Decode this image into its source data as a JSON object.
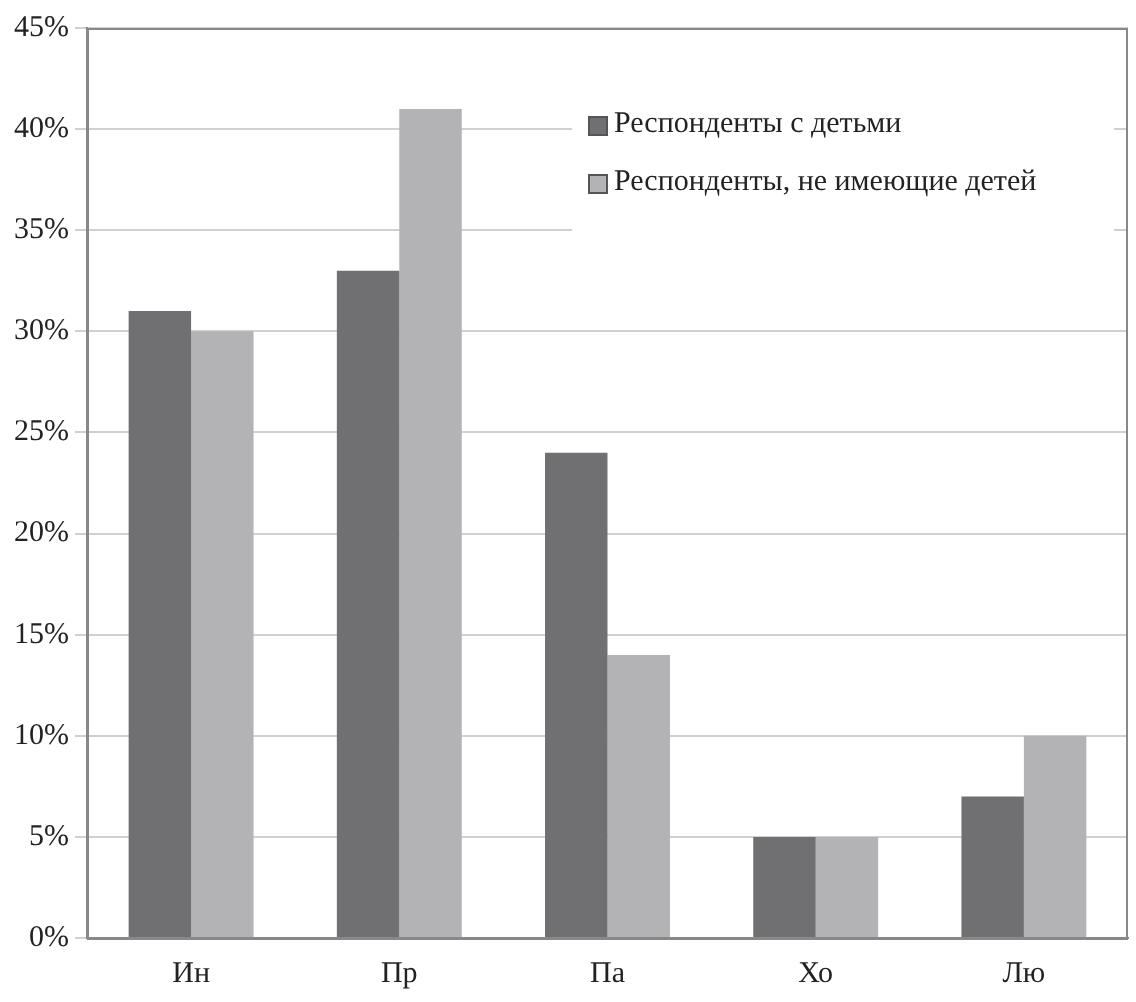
{
  "chart_data": {
    "type": "bar",
    "categories": [
      "Ин",
      "Пр",
      "Па",
      "Хо",
      "Лю"
    ],
    "series": [
      {
        "name": "Респонденты с детьми",
        "color": "#707073",
        "values": [
          31,
          33,
          24,
          5,
          7
        ]
      },
      {
        "name": "Респонденты, не имеющие детей",
        "color": "#b3b3b6",
        "values": [
          30,
          41,
          14,
          5,
          10
        ]
      }
    ],
    "ylim": [
      0,
      45
    ],
    "yticks": [
      {
        "value": 0,
        "label": "0%"
      },
      {
        "value": 5,
        "label": "5%"
      },
      {
        "value": 10,
        "label": "10%"
      },
      {
        "value": 15,
        "label": "15%"
      },
      {
        "value": 20,
        "label": "20%"
      },
      {
        "value": 25,
        "label": "25%"
      },
      {
        "value": 30,
        "label": "30%"
      },
      {
        "value": 35,
        "label": "35%"
      },
      {
        "value": 40,
        "label": "40%"
      },
      {
        "value": 45,
        "label": "45%"
      }
    ],
    "grid": "y",
    "legend": "top right"
  }
}
